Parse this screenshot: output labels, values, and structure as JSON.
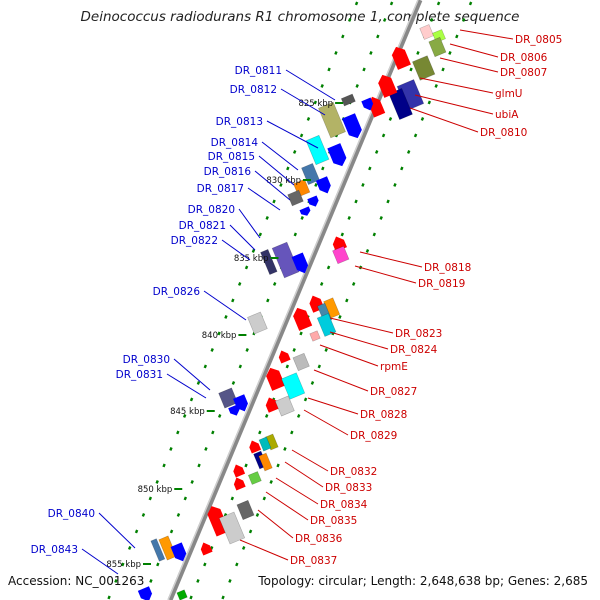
{
  "title": "Deinococcus radiodurans R1 chromosome 1, complete sequence",
  "footer": {
    "accession": "Accession: NC_001263",
    "summary": "Topology: circular; Length: 2,648,638 bp; Genes: 2,685"
  },
  "colors": {
    "left_label": "#0000cc",
    "right_label": "#cc0000",
    "tick": "#008000",
    "backbone": "#888888"
  },
  "scale_labels": [
    "825 kbp",
    "830 kbp",
    "835 kbp",
    "840 kbp",
    "845 kbp",
    "850 kbp",
    "855 kbp"
  ],
  "left_genes": [
    "DR_0811",
    "DR_0812",
    "DR_0813",
    "DR_0814",
    "DR_0815",
    "DR_0816",
    "DR_0817",
    "DR_0820",
    "DR_0821",
    "DR_0822",
    "DR_0826",
    "DR_0830",
    "DR_0831",
    "DR_0840",
    "DR_0843"
  ],
  "right_genes": [
    "DR_0805",
    "DR_0806",
    "DR_0807",
    "glmU",
    "ubiA",
    "DR_0810",
    "DR_0818",
    "DR_0819",
    "DR_0823",
    "DR_0824",
    "rpmE",
    "DR_0827",
    "DR_0828",
    "DR_0829",
    "DR_0832",
    "DR_0833",
    "DR_0834",
    "DR_0835",
    "DR_0836",
    "DR_0837"
  ]
}
